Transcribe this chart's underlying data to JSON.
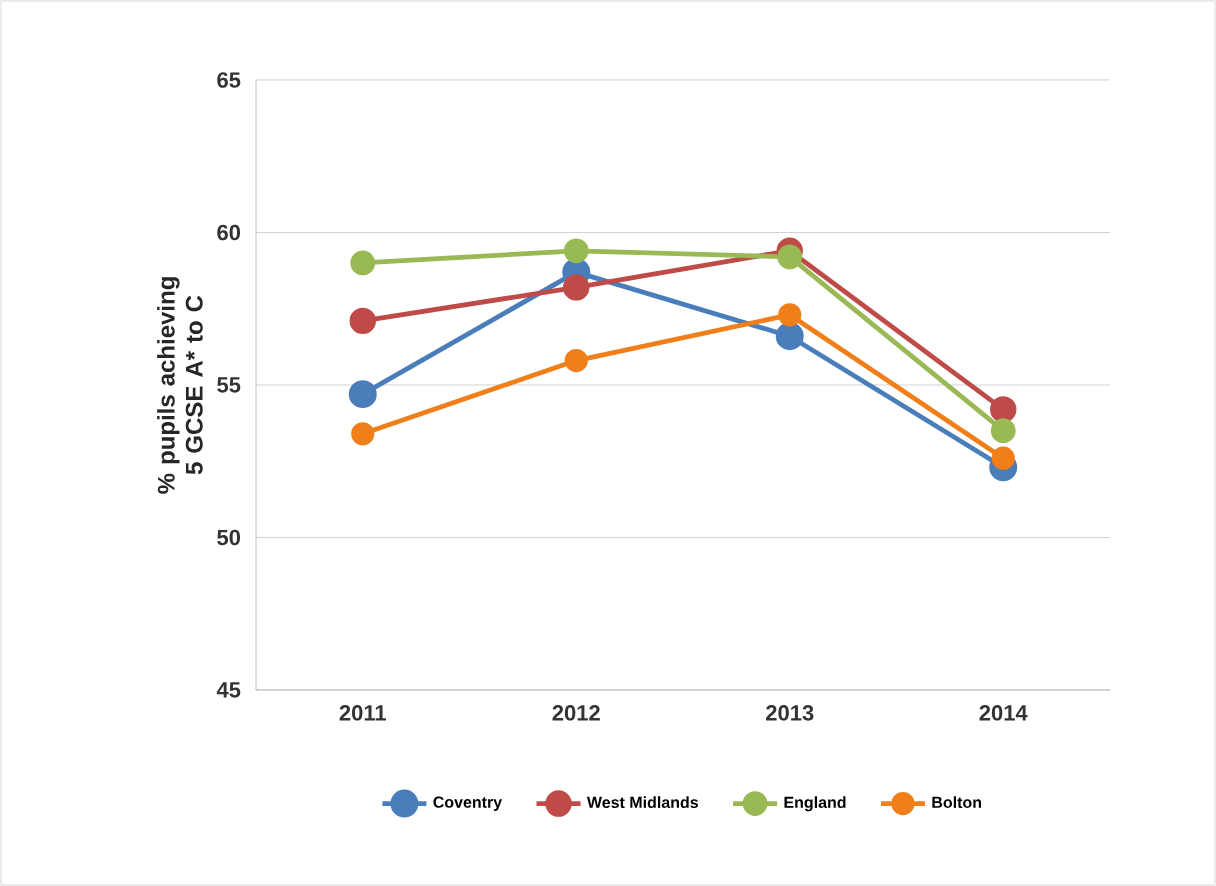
{
  "chart_data": {
    "type": "line",
    "ylabel": "% pupils achieving 5 GCSE A* to C",
    "categories": [
      "2011",
      "2012",
      "2013",
      "2014"
    ],
    "series": [
      {
        "name": "Coventry",
        "color": "#4a7ebb",
        "values": [
          54.7,
          58.7,
          56.6,
          52.3
        ]
      },
      {
        "name": "West Midlands",
        "color": "#be4b48",
        "values": [
          57.1,
          58.2,
          59.4,
          54.2
        ]
      },
      {
        "name": "England",
        "color": "#98b954",
        "values": [
          59.0,
          59.4,
          59.2,
          53.5
        ]
      },
      {
        "name": "Bolton",
        "color": "#f07f1a",
        "values": [
          53.4,
          55.8,
          57.3,
          52.6
        ]
      }
    ],
    "ylim": [
      45,
      65
    ],
    "yticks": [
      45,
      50,
      55,
      60,
      65
    ],
    "grid": "y",
    "legend": "bottom",
    "marker": "circle"
  }
}
